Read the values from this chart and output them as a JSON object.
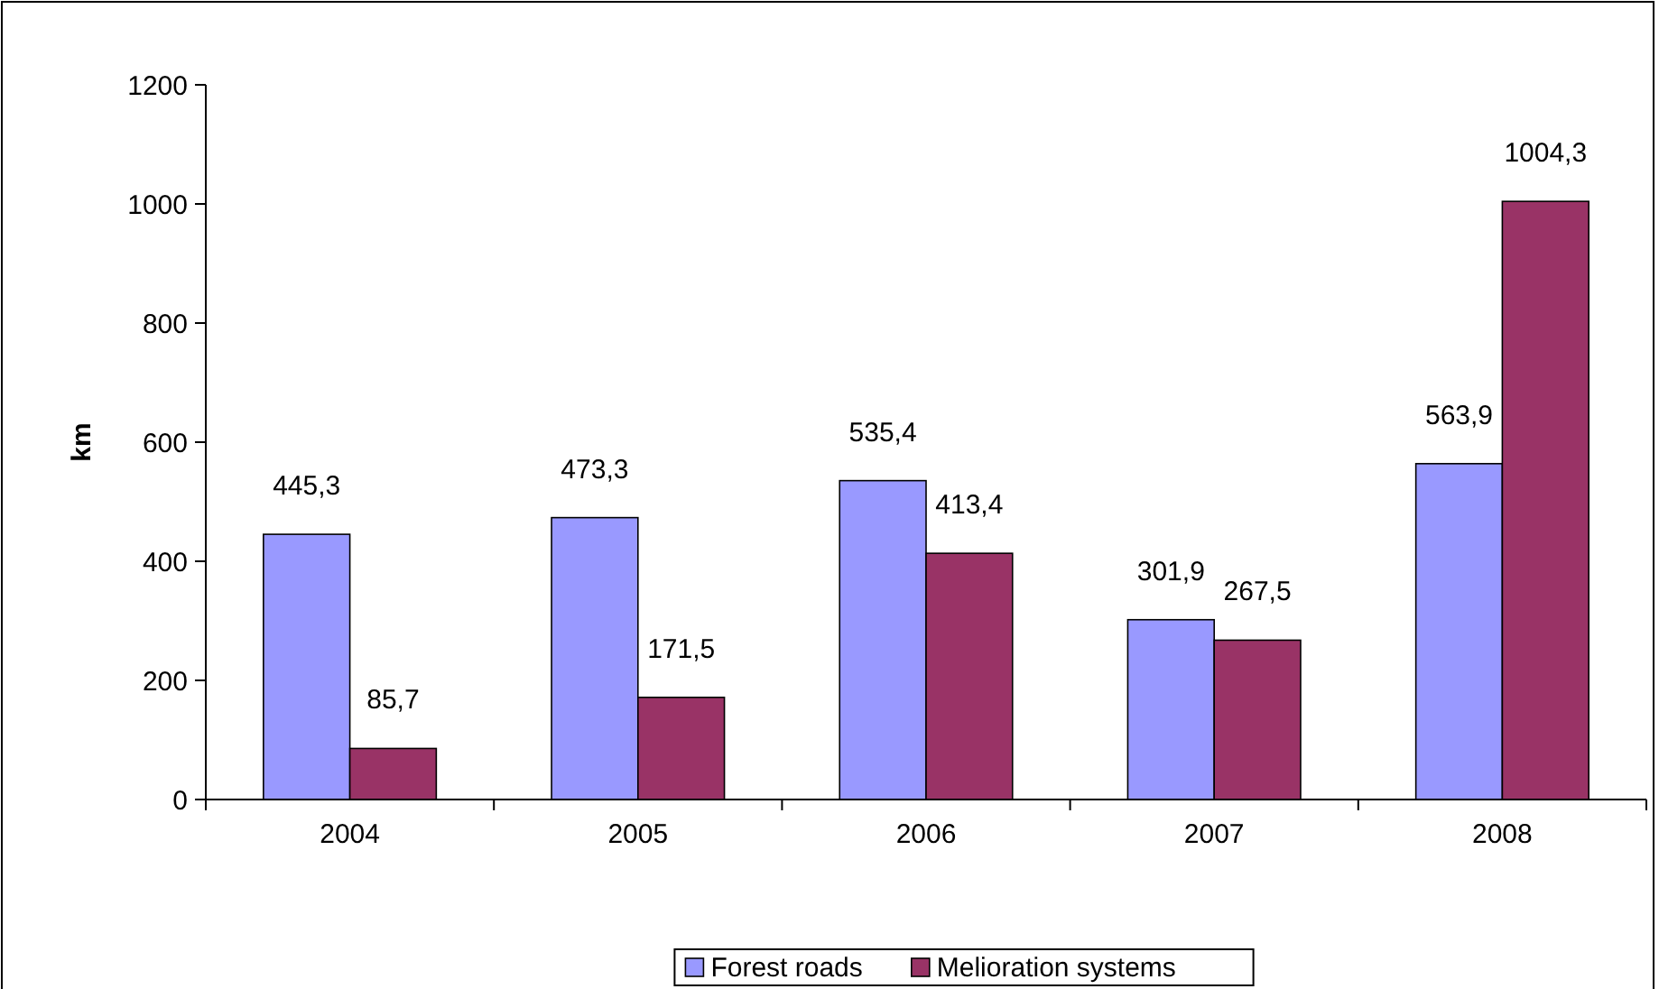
{
  "chart_data": {
    "type": "bar",
    "ylabel": "km",
    "categories": [
      "2004",
      "2005",
      "2006",
      "2007",
      "2008"
    ],
    "series": [
      {
        "name": "Forest roads",
        "color": "#9999ff",
        "values": [
          445.3,
          473.3,
          535.4,
          301.9,
          563.9
        ],
        "value_labels": [
          "445,3",
          "473,3",
          "535,4",
          "301,9",
          "563,9"
        ]
      },
      {
        "name": "Melioration systems",
        "color": "#993366",
        "values": [
          85.7,
          171.5,
          413.4,
          267.5,
          1004.3
        ],
        "value_labels": [
          "85,7",
          "171,5",
          "413,4",
          "267,5",
          "1004,3"
        ]
      }
    ],
    "ylim": [
      0,
      1200
    ],
    "yticks": [
      0,
      200,
      400,
      600,
      800,
      1000,
      1200
    ],
    "legend": "bottom"
  }
}
